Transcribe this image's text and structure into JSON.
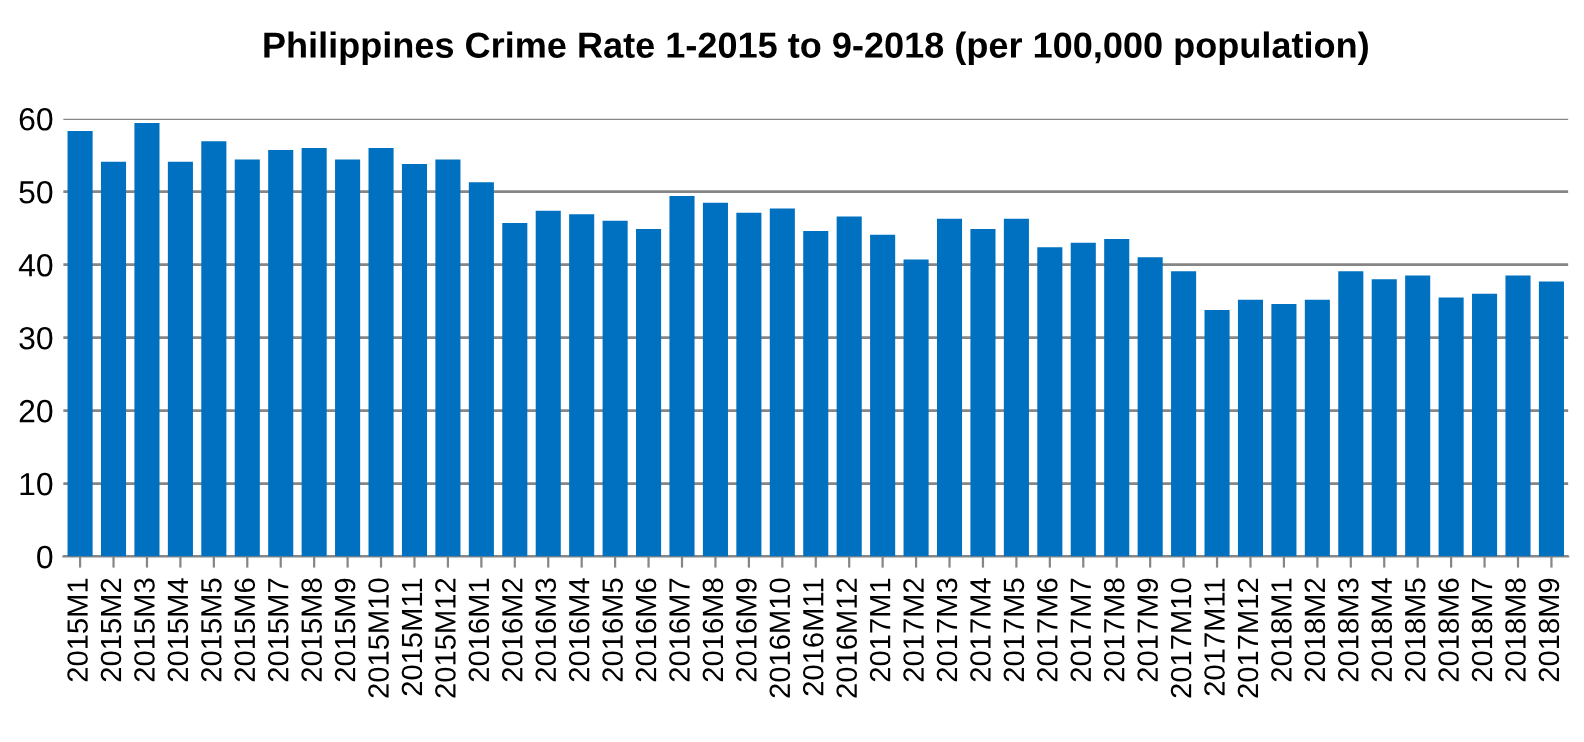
{
  "chart_data": {
    "type": "bar",
    "title": "Philippines Crime Rate 1-2015 to 9-2018 (per 100,000 population)",
    "categories": [
      "2015M1",
      "2015M2",
      "2015M3",
      "2015M4",
      "2015M5",
      "2015M6",
      "2015M7",
      "2015M8",
      "2015M9",
      "2015M10",
      "2015M11",
      "2015M12",
      "2016M1",
      "2016M2",
      "2016M3",
      "2016M4",
      "2016M5",
      "2016M6",
      "2016M7",
      "2016M8",
      "2016M9",
      "2016M10",
      "2016M11",
      "2016M12",
      "2017M1",
      "2017M2",
      "2017M3",
      "2017M4",
      "2017M5",
      "2017M6",
      "2017M7",
      "2017M8",
      "2017M9",
      "2017M10",
      "2017M11",
      "2017M12",
      "2018M1",
      "2018M2",
      "2018M3",
      "2018M4",
      "2018M5",
      "2018M6",
      "2018M7",
      "2018M8",
      "2018M9"
    ],
    "values": [
      58.3,
      54.1,
      59.4,
      54.1,
      56.9,
      54.4,
      55.7,
      56.0,
      54.4,
      56.0,
      53.8,
      54.4,
      51.3,
      45.7,
      47.4,
      46.9,
      46.0,
      44.9,
      49.4,
      48.5,
      47.1,
      47.7,
      44.6,
      46.6,
      44.1,
      40.7,
      46.3,
      44.9,
      46.3,
      42.4,
      43.0,
      43.5,
      41.0,
      39.1,
      33.8,
      35.2,
      34.6,
      35.2,
      39.1,
      38.0,
      38.5,
      35.5,
      36.0,
      38.5,
      37.7
    ],
    "color": "#0070c0",
    "ylim": [
      0,
      60
    ],
    "yticks": [
      0,
      10,
      20,
      30,
      40,
      50,
      60
    ],
    "grid": "y",
    "legend": false
  }
}
